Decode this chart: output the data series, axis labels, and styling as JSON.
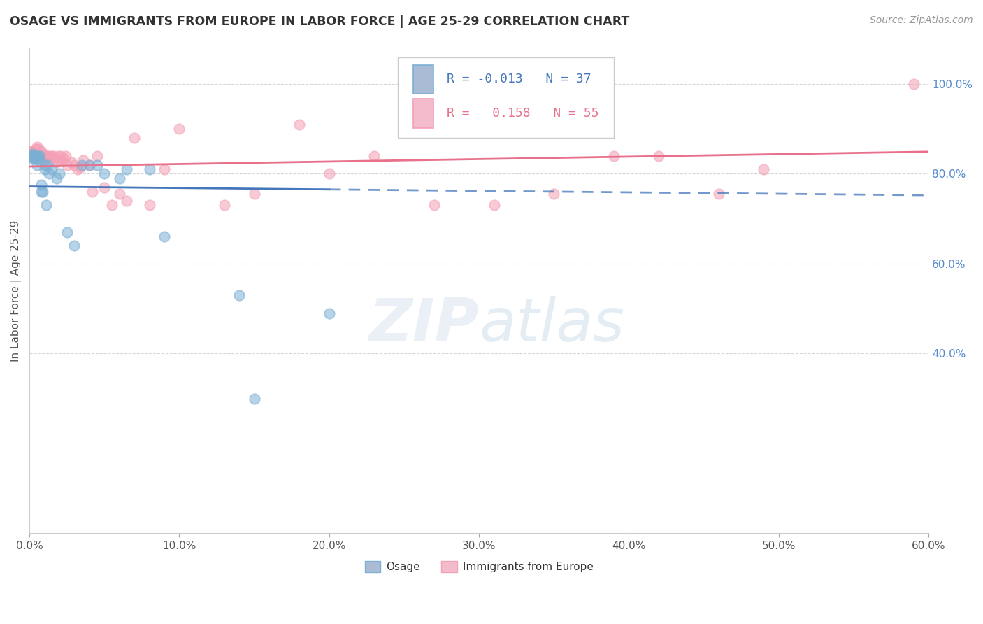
{
  "title": "OSAGE VS IMMIGRANTS FROM EUROPE IN LABOR FORCE | AGE 25-29 CORRELATION CHART",
  "source": "Source: ZipAtlas.com",
  "ylabel": "In Labor Force | Age 25-29",
  "xlim": [
    0.0,
    0.6
  ],
  "ylim": [
    0.0,
    1.08
  ],
  "xticks": [
    0.0,
    0.1,
    0.2,
    0.3,
    0.4,
    0.5,
    0.6
  ],
  "xtick_labels": [
    "0.0%",
    "10.0%",
    "20.0%",
    "30.0%",
    "40.0%",
    "50.0%",
    "60.0%"
  ],
  "yticks_right": [
    0.4,
    0.6,
    0.8,
    1.0
  ],
  "ytick_right_labels": [
    "40.0%",
    "60.0%",
    "80.0%",
    "100.0%"
  ],
  "legend_R_osage": "-0.013",
  "legend_N_osage": "37",
  "legend_R_immig": "0.158",
  "legend_N_immig": "55",
  "osage_color": "#7BAFD4",
  "immig_color": "#F4A0B5",
  "osage_line_color": "#4477BB",
  "immig_line_color": "#E8708A",
  "background_color": "#FFFFFF",
  "grid_color": "#CCCCCC",
  "watermark_zip": "ZIP",
  "watermark_atlas": "atlas",
  "watermark_color_zip": "#C5D5E8",
  "watermark_color_atlas": "#A8C5D8",
  "osage_x": [
    0.001,
    0.002,
    0.002,
    0.003,
    0.003,
    0.003,
    0.004,
    0.004,
    0.005,
    0.005,
    0.006,
    0.006,
    0.007,
    0.008,
    0.008,
    0.009,
    0.01,
    0.01,
    0.011,
    0.012,
    0.013,
    0.015,
    0.018,
    0.02,
    0.025,
    0.03,
    0.035,
    0.04,
    0.045,
    0.05,
    0.06,
    0.065,
    0.08,
    0.09,
    0.14,
    0.15,
    0.2
  ],
  "osage_y": [
    0.84,
    0.845,
    0.835,
    0.84,
    0.84,
    0.835,
    0.84,
    0.84,
    0.835,
    0.82,
    0.84,
    0.83,
    0.84,
    0.775,
    0.76,
    0.76,
    0.82,
    0.81,
    0.73,
    0.82,
    0.8,
    0.81,
    0.79,
    0.8,
    0.67,
    0.64,
    0.82,
    0.82,
    0.82,
    0.8,
    0.79,
    0.81,
    0.81,
    0.66,
    0.53,
    0.3,
    0.49
  ],
  "immig_x": [
    0.001,
    0.002,
    0.003,
    0.004,
    0.004,
    0.005,
    0.006,
    0.007,
    0.008,
    0.009,
    0.01,
    0.011,
    0.012,
    0.013,
    0.014,
    0.015,
    0.016,
    0.017,
    0.018,
    0.019,
    0.02,
    0.021,
    0.022,
    0.023,
    0.024,
    0.025,
    0.028,
    0.03,
    0.032,
    0.034,
    0.036,
    0.04,
    0.042,
    0.045,
    0.05,
    0.055,
    0.06,
    0.065,
    0.07,
    0.08,
    0.09,
    0.1,
    0.13,
    0.15,
    0.18,
    0.2,
    0.23,
    0.27,
    0.31,
    0.35,
    0.39,
    0.42,
    0.46,
    0.49,
    0.59
  ],
  "immig_y": [
    0.85,
    0.85,
    0.845,
    0.84,
    0.855,
    0.86,
    0.855,
    0.84,
    0.85,
    0.845,
    0.84,
    0.835,
    0.84,
    0.84,
    0.835,
    0.84,
    0.84,
    0.835,
    0.825,
    0.84,
    0.83,
    0.84,
    0.83,
    0.835,
    0.84,
    0.82,
    0.825,
    0.82,
    0.81,
    0.815,
    0.83,
    0.82,
    0.76,
    0.84,
    0.77,
    0.73,
    0.755,
    0.74,
    0.88,
    0.73,
    0.81,
    0.9,
    0.73,
    0.755,
    0.91,
    0.8,
    0.84,
    0.73,
    0.73,
    0.755,
    0.84,
    0.84,
    0.755,
    0.81,
    1.0
  ]
}
